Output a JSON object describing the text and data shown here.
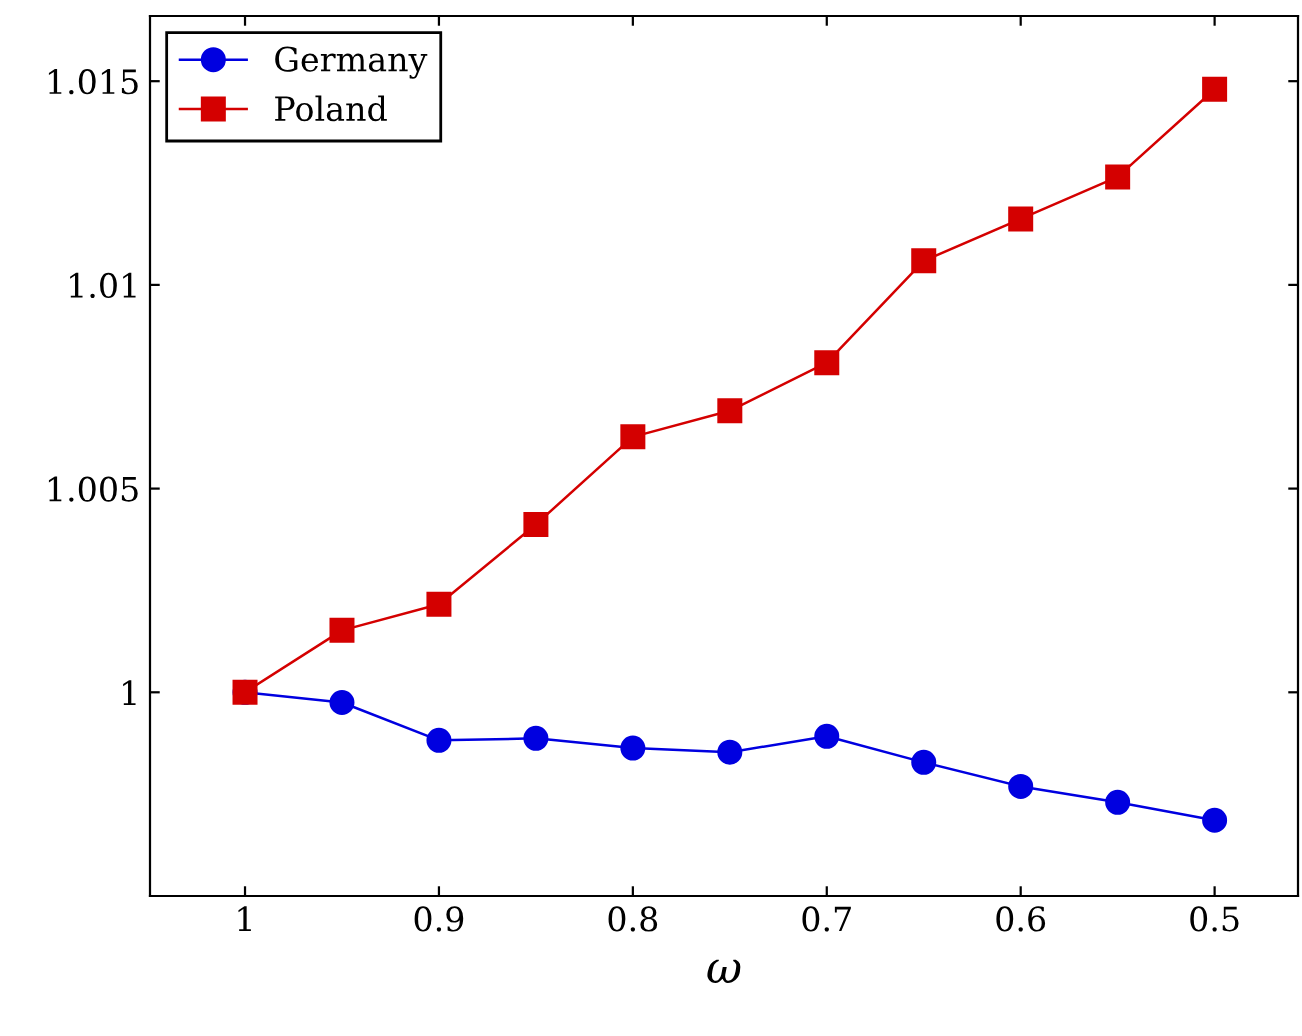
{
  "chart_data": {
    "type": "line",
    "xlabel": "ω",
    "x": [
      1,
      0.95,
      0.9,
      0.85,
      0.8,
      0.75,
      0.7,
      0.65,
      0.6,
      0.55,
      0.5
    ],
    "series": [
      {
        "name": "Germany",
        "color": "#0000e0",
        "marker": "circle",
        "values": [
          1,
          0.99975,
          0.99882,
          0.99887,
          0.99863,
          0.99853,
          0.99892,
          0.99828,
          0.99769,
          0.9973,
          0.99686
        ]
      },
      {
        "name": "Poland",
        "color": "#d40000",
        "marker": "square",
        "values": [
          1,
          1.00152,
          1.00216,
          1.00412,
          1.00627,
          1.00691,
          1.00809,
          1.01059,
          1.01162,
          1.01265,
          1.0148
        ]
      }
    ],
    "xlim": [
      1.049,
      0.457
    ],
    "xticks": [
      1,
      0.9,
      0.8,
      0.7,
      0.6,
      0.5
    ],
    "ylim": [
      0.995,
      1.0166
    ],
    "yticks": [
      1,
      1.005,
      1.01,
      1.015
    ],
    "grid": false,
    "legend": "top left",
    "line_style": "solid"
  }
}
